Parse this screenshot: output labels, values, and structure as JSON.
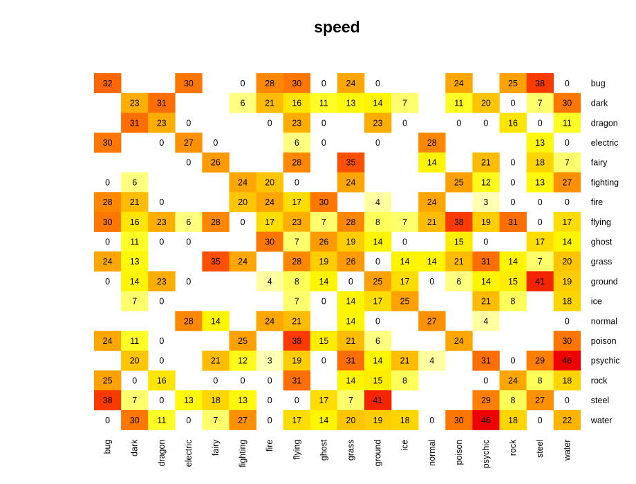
{
  "chart_data": {
    "type": "heatmap",
    "title": "speed",
    "rows": [
      "bug",
      "dark",
      "dragon",
      "electric",
      "fairy",
      "fighting",
      "fire",
      "flying",
      "ghost",
      "grass",
      "ground",
      "ice",
      "normal",
      "poison",
      "psychic",
      "rock",
      "steel",
      "water"
    ],
    "cols": [
      "bug",
      "dark",
      "dragon",
      "electric",
      "fairy",
      "fighting",
      "fire",
      "flying",
      "ghost",
      "grass",
      "ground",
      "ice",
      "normal",
      "poison",
      "psychic",
      "rock",
      "steel",
      "water"
    ],
    "values": [
      [
        32,
        null,
        null,
        30,
        null,
        0,
        28,
        30,
        0,
        24,
        0,
        null,
        null,
        24,
        null,
        25,
        38,
        0
      ],
      [
        null,
        23,
        31,
        null,
        null,
        6,
        21,
        16,
        11,
        13,
        14,
        7,
        null,
        11,
        20,
        0,
        7,
        30
      ],
      [
        null,
        31,
        23,
        0,
        null,
        null,
        0,
        23,
        0,
        null,
        23,
        0,
        null,
        0,
        0,
        16,
        0,
        11
      ],
      [
        30,
        null,
        0,
        27,
        0,
        null,
        null,
        6,
        0,
        null,
        0,
        null,
        28,
        null,
        null,
        null,
        13,
        0
      ],
      [
        null,
        null,
        null,
        0,
        26,
        null,
        null,
        28,
        null,
        35,
        null,
        null,
        14,
        null,
        21,
        0,
        18,
        7
      ],
      [
        0,
        6,
        null,
        null,
        null,
        24,
        20,
        0,
        null,
        24,
        null,
        null,
        null,
        25,
        12,
        0,
        13,
        27
      ],
      [
        28,
        21,
        0,
        null,
        null,
        20,
        24,
        17,
        30,
        null,
        4,
        null,
        24,
        null,
        3,
        0,
        0,
        0
      ],
      [
        30,
        16,
        23,
        6,
        28,
        0,
        17,
        23,
        7,
        28,
        8,
        7,
        21,
        38,
        19,
        31,
        0,
        17
      ],
      [
        0,
        11,
        0,
        0,
        null,
        null,
        30,
        7,
        26,
        19,
        14,
        0,
        null,
        15,
        0,
        null,
        17,
        14
      ],
      [
        24,
        13,
        null,
        null,
        35,
        24,
        null,
        28,
        19,
        26,
        0,
        14,
        14,
        21,
        31,
        14,
        7,
        20
      ],
      [
        0,
        14,
        23,
        0,
        null,
        null,
        4,
        8,
        14,
        0,
        25,
        17,
        0,
        6,
        14,
        15,
        41,
        19
      ],
      [
        null,
        7,
        0,
        null,
        null,
        null,
        null,
        7,
        0,
        14,
        17,
        25,
        null,
        null,
        21,
        8,
        null,
        18
      ],
      [
        null,
        null,
        null,
        28,
        14,
        null,
        24,
        21,
        null,
        14,
        0,
        null,
        27,
        null,
        4,
        null,
        null,
        0
      ],
      [
        24,
        11,
        0,
        null,
        null,
        25,
        null,
        38,
        15,
        21,
        6,
        null,
        null,
        24,
        null,
        null,
        null,
        30
      ],
      [
        null,
        20,
        0,
        null,
        21,
        12,
        3,
        19,
        0,
        31,
        14,
        21,
        4,
        null,
        31,
        0,
        29,
        46
      ],
      [
        25,
        0,
        16,
        null,
        0,
        0,
        0,
        31,
        null,
        14,
        15,
        8,
        null,
        null,
        0,
        24,
        8,
        18
      ],
      [
        38,
        7,
        0,
        13,
        18,
        13,
        0,
        0,
        17,
        7,
        41,
        null,
        null,
        null,
        29,
        8,
        27,
        0
      ],
      [
        0,
        30,
        11,
        0,
        7,
        27,
        0,
        17,
        14,
        20,
        19,
        18,
        0,
        30,
        46,
        18,
        0,
        22
      ]
    ],
    "color_scale": {
      "stops": [
        {
          "value": 0,
          "color": "#FFFFFF"
        },
        {
          "value": 3,
          "color": "#FFFFB3"
        },
        {
          "value": 6,
          "color": "#FFFF80"
        },
        {
          "value": 10,
          "color": "#FFFF33"
        },
        {
          "value": 14,
          "color": "#FFF500"
        },
        {
          "value": 18,
          "color": "#FFD500"
        },
        {
          "value": 22,
          "color": "#FFB400"
        },
        {
          "value": 26,
          "color": "#FF9A00"
        },
        {
          "value": 30,
          "color": "#FF7600"
        },
        {
          "value": 35,
          "color": "#FF5000"
        },
        {
          "value": 40,
          "color": "#F62B00"
        },
        {
          "value": 46,
          "color": "#EE0000"
        }
      ],
      "missing": "#FFFFFF"
    },
    "legend": "none",
    "grid": false
  }
}
